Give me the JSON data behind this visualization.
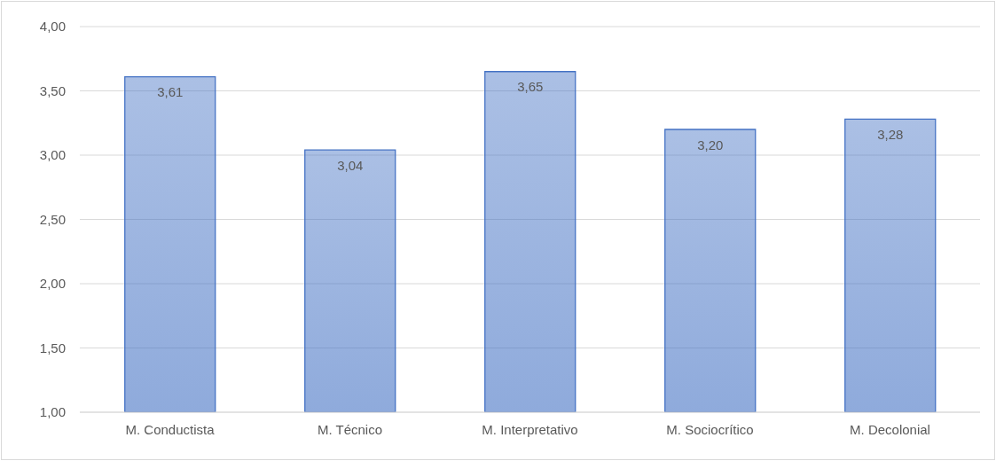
{
  "chart_data": {
    "type": "bar",
    "categories": [
      "M. Conductista",
      "M. Técnico",
      "M. Interpretativo",
      "M. Sociocrítico",
      "M. Decolonial"
    ],
    "values": [
      3.61,
      3.04,
      3.65,
      3.2,
      3.28
    ],
    "value_labels": [
      "3,61",
      "3,04",
      "3,65",
      "3,20",
      "3,28"
    ],
    "color": "#4472c4",
    "ylim": [
      1,
      4
    ],
    "yticks": [
      {
        "value": 1,
        "label": "1,00"
      },
      {
        "value": 1.5,
        "label": "1,50"
      },
      {
        "value": 2,
        "label": "2,00"
      },
      {
        "value": 2.5,
        "label": "2,50"
      },
      {
        "value": 3,
        "label": "3,00"
      },
      {
        "value": 3.5,
        "label": "3,50"
      },
      {
        "value": 4,
        "label": "4,00"
      }
    ],
    "grid": "y",
    "legend": false
  }
}
